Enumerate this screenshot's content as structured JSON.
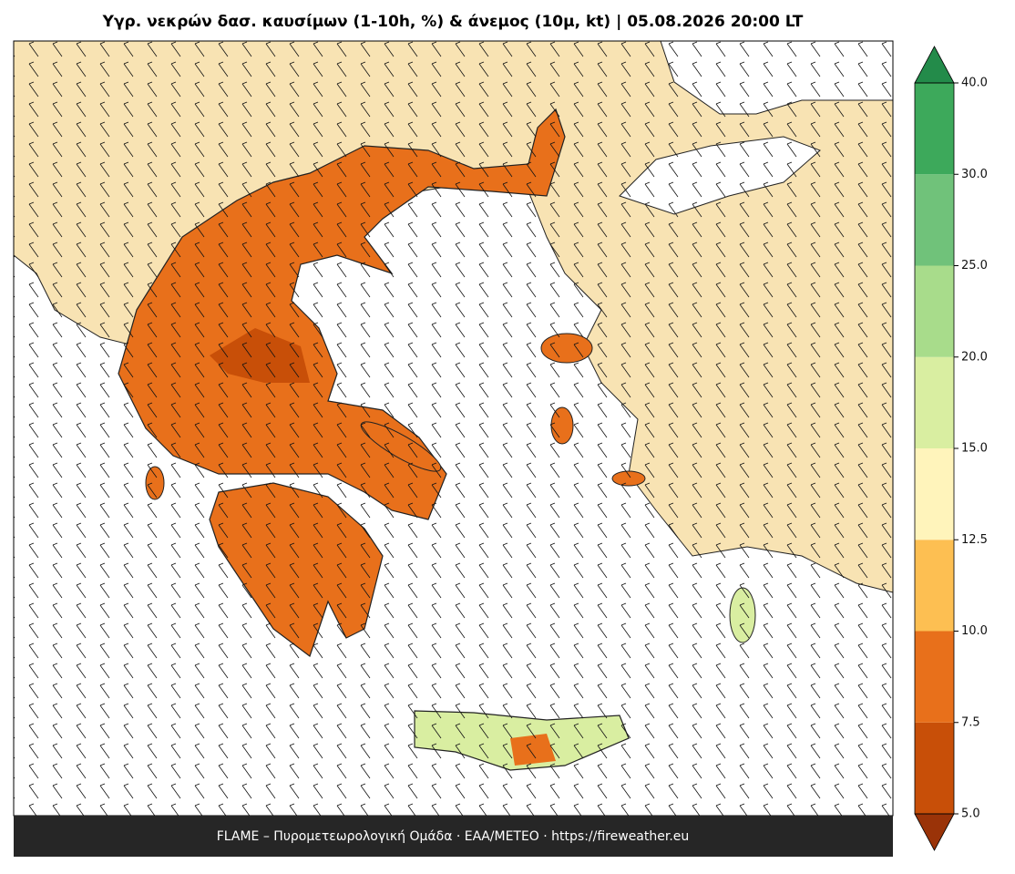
{
  "title": "Υγρ. νεκρών δασ. καυσίμων (1-10h, %) & άνεμος (10μ, kt)  |  05.08.2026 20:00 LT",
  "footer": "FLAME – Πυρομετεωρολογική Ομάδα · ΕΑΑ/METEO · https://fireweather.eu",
  "colorbar": {
    "ticks": [
      {
        "value": 5,
        "label": "5.0"
      },
      {
        "value": 7.5,
        "label": "7.5"
      },
      {
        "value": 10,
        "label": "10.0"
      },
      {
        "value": 12.5,
        "label": "12.5"
      },
      {
        "value": 15,
        "label": "15.0"
      },
      {
        "value": 20,
        "label": "20.0"
      },
      {
        "value": 25,
        "label": "25.0"
      },
      {
        "value": 30,
        "label": "30.0"
      },
      {
        "value": 40,
        "label": "40.0"
      }
    ],
    "colors": [
      "#c84f08",
      "#e8701b",
      "#fdbf52",
      "#fff4bb",
      "#d9eea1",
      "#a8dc8b",
      "#70c27a",
      "#3da95b"
    ],
    "under_color": "#9a3308",
    "over_color": "#238b4a"
  }
}
